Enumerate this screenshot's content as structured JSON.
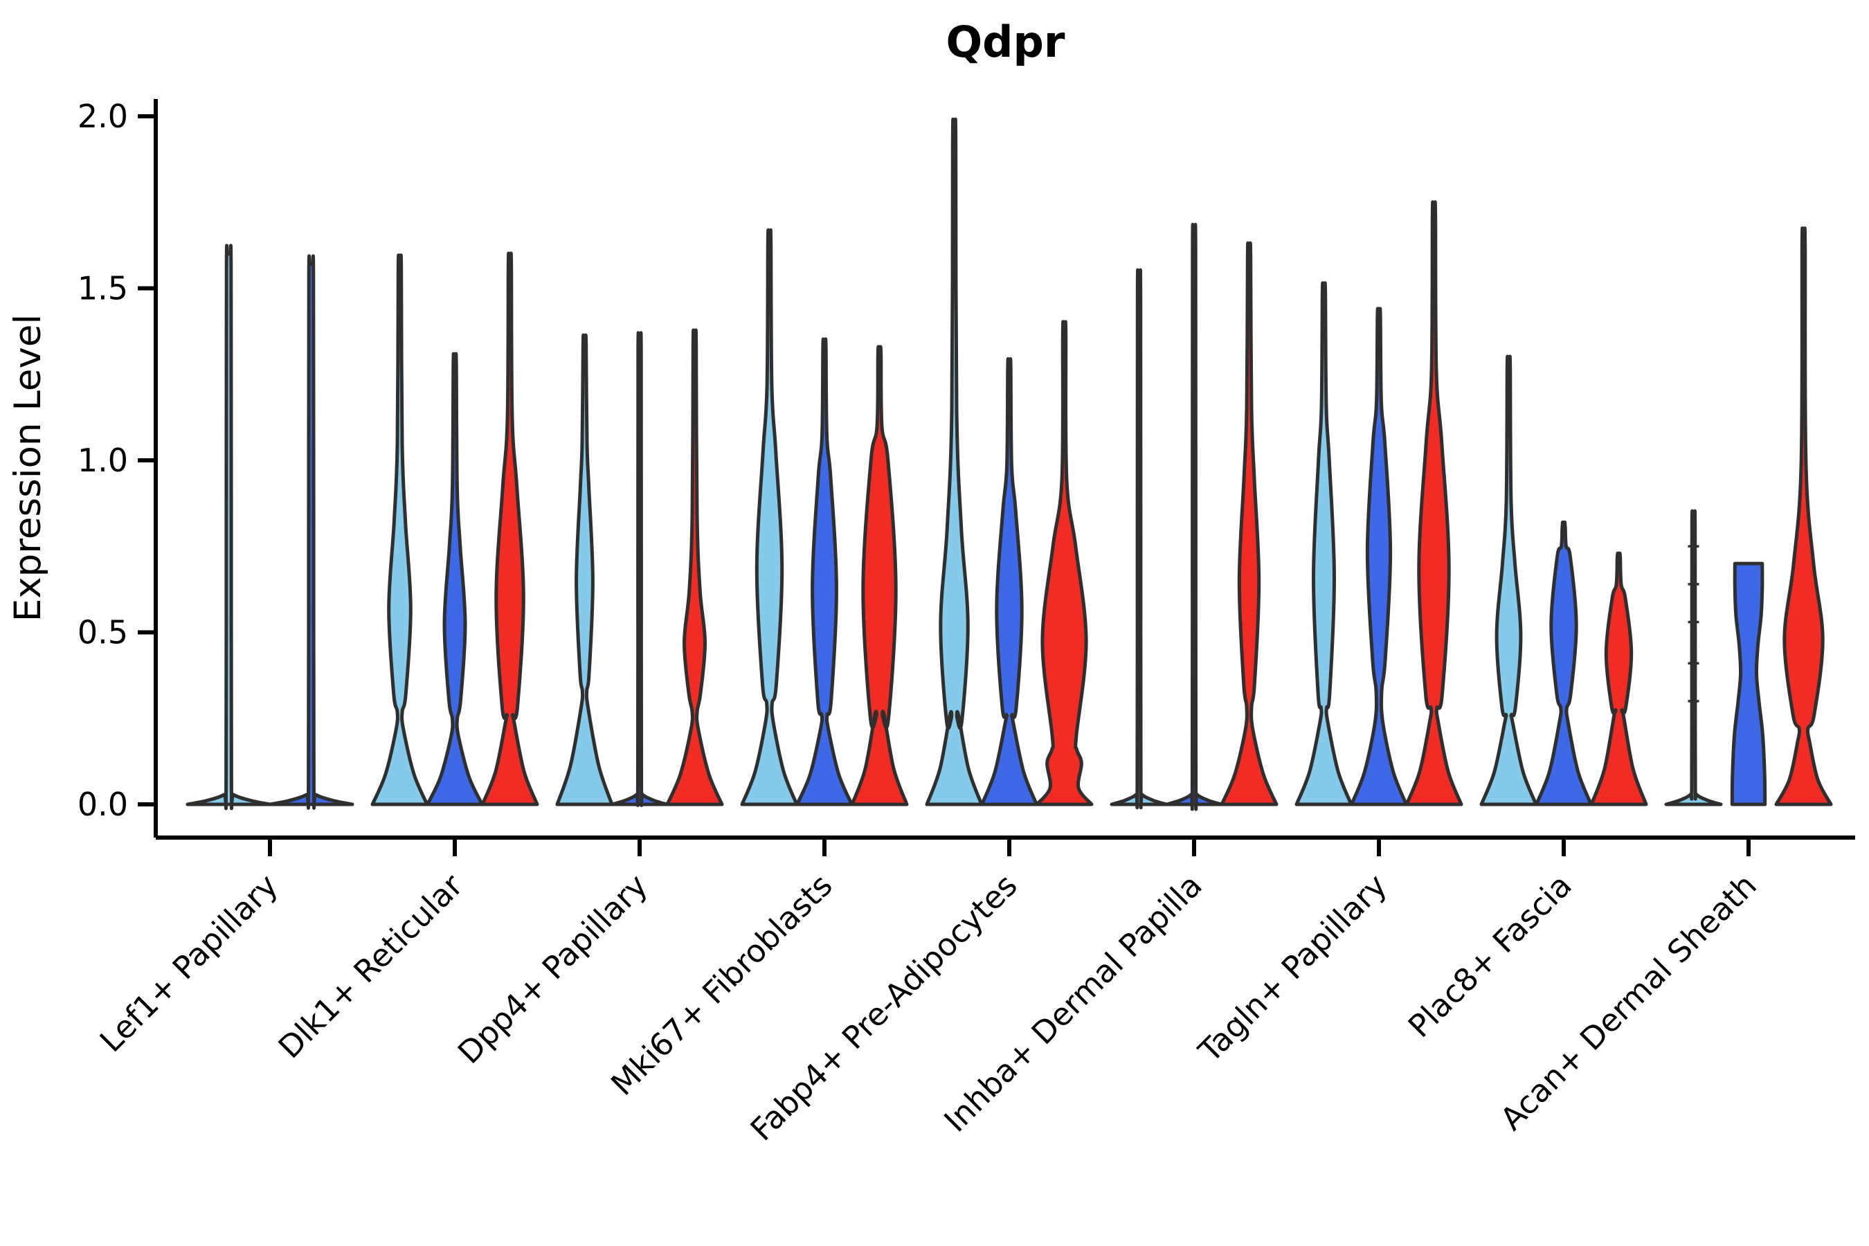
{
  "title": "Qdpr",
  "y_axis": {
    "label": "Expression Level",
    "tick_labels": [
      "0.0",
      "0.5",
      "1.0",
      "1.5",
      "2.0"
    ],
    "tick_values": [
      0.0,
      0.5,
      1.0,
      1.5,
      2.0
    ]
  },
  "x_axis": {
    "categories": [
      "Lef1+ Papillary",
      "Dlk1+ Reticular",
      "Dpp4+ Papillary",
      "Mki67+ Fibroblasts",
      "Fabp4+ Pre-Adipocytes",
      "Inhba+ Dermal Papilla",
      "Tagln+ Papillary",
      "Plac8+ Fascia",
      "Acan+ Dermal Sheath"
    ]
  },
  "palette": {
    "light_blue": "#85CAEA",
    "dark_blue": "#3D68E8",
    "red": "#F32B25",
    "outline": "#2F2F2F",
    "axis": "#000000"
  },
  "chart_data": {
    "type": "violin",
    "title": "Qdpr",
    "xlabel": "",
    "ylabel": "Expression Level",
    "ylim": [
      0,
      2.05
    ],
    "grid": false,
    "legend": "none",
    "categories": [
      "Lef1+ Papillary",
      "Dlk1+ Reticular",
      "Dpp4+ Papillary",
      "Mki67+ Fibroblasts",
      "Fabp4+ Pre-Adipocytes",
      "Inhba+ Dermal Papilla",
      "Tagln+ Papillary",
      "Plac8+ Fascia",
      "Acan+ Dermal Sheath"
    ],
    "series_order": [
      "light_blue",
      "dark_blue",
      "red"
    ],
    "note": "Split violin plot of Qdpr expression per fibroblast cluster; max = top of expression spike; bulge = value interval of visible density bulge; bulge_w, foot and neck widths are fractions of the violin slot half-width.",
    "groups": [
      {
        "category": "Lef1+ Papillary",
        "violins": [
          {
            "series": "light_blue",
            "shape": "flat_spike",
            "max": 1.6
          },
          {
            "series": "dark_blue",
            "shape": "flat_spike",
            "max": 1.57
          }
        ]
      },
      {
        "category": "Dlk1+ Reticular",
        "violins": [
          {
            "series": "light_blue",
            "shape": "violin",
            "max": 1.58,
            "foot_h": 0.22,
            "neck_w": 0.09,
            "bulge": [
              0.32,
              0.82
            ],
            "bulge_w": 0.4
          },
          {
            "series": "dark_blue",
            "shape": "violin",
            "max": 1.3,
            "foot_h": 0.2,
            "neck_w": 0.09,
            "bulge": [
              0.3,
              0.75
            ],
            "bulge_w": 0.38
          },
          {
            "series": "red",
            "shape": "violin",
            "max": 1.59,
            "foot_h": 0.24,
            "neck_w": 0.11,
            "bulge": [
              0.28,
              0.92
            ],
            "bulge_w": 0.5
          }
        ]
      },
      {
        "category": "Dpp4+ Papillary",
        "violins": [
          {
            "series": "light_blue",
            "shape": "violin",
            "max": 1.36,
            "foot_h": 0.28,
            "neck_w": 0.08,
            "bulge": [
              0.38,
              0.92
            ],
            "bulge_w": 0.3
          },
          {
            "series": "dark_blue",
            "shape": "flat_spike",
            "max": 1.35
          },
          {
            "series": "red",
            "shape": "violin",
            "max": 1.36,
            "foot_h": 0.22,
            "neck_w": 0.09,
            "bulge": [
              0.32,
              0.62
            ],
            "bulge_w": 0.38
          }
        ]
      },
      {
        "category": "Mki67+ Fibroblasts",
        "violins": [
          {
            "series": "light_blue",
            "shape": "violin",
            "max": 1.66,
            "foot_h": 0.24,
            "neck_w": 0.1,
            "bulge": [
              0.35,
              1.02
            ],
            "bulge_w": 0.46
          },
          {
            "series": "dark_blue",
            "shape": "violin",
            "max": 1.35,
            "foot_h": 0.22,
            "neck_w": 0.1,
            "bulge": [
              0.3,
              0.95
            ],
            "bulge_w": 0.44
          },
          {
            "series": "red",
            "shape": "violin",
            "max": 1.33,
            "foot_h": 0.26,
            "neck_w": 0.12,
            "bulge": [
              0.25,
              1.0
            ],
            "bulge_w": 0.6
          }
        ]
      },
      {
        "category": "Fabp4+ Pre-Adipocytes",
        "violins": [
          {
            "series": "light_blue",
            "shape": "violin",
            "max": 1.96,
            "foot_h": 0.26,
            "neck_w": 0.11,
            "bulge": [
              0.24,
              0.8
            ],
            "bulge_w": 0.5
          },
          {
            "series": "dark_blue",
            "shape": "violin",
            "max": 1.29,
            "foot_h": 0.24,
            "neck_w": 0.1,
            "bulge": [
              0.28,
              0.85
            ],
            "bulge_w": 0.46
          },
          {
            "series": "red",
            "shape": "violin",
            "max": 1.39,
            "foot_h": 0.12,
            "neck_w": 0.45,
            "bulge": [
              0.2,
              0.75
            ],
            "bulge_w": 0.8
          }
        ]
      },
      {
        "category": "Inhba+ Dermal Papilla",
        "violins": [
          {
            "series": "light_blue",
            "shape": "flat_spike",
            "max": 1.53
          },
          {
            "series": "dark_blue",
            "shape": "flat_spike",
            "max": 1.66
          },
          {
            "series": "red",
            "shape": "violin",
            "max": 1.62,
            "foot_h": 0.22,
            "neck_w": 0.09,
            "bulge": [
              0.35,
              0.95
            ],
            "bulge_w": 0.36
          }
        ]
      },
      {
        "category": "Tagln+ Papillary",
        "violins": [
          {
            "series": "light_blue",
            "shape": "violin",
            "max": 1.51,
            "foot_h": 0.24,
            "neck_w": 0.1,
            "bulge": [
              0.32,
              1.0
            ],
            "bulge_w": 0.38
          },
          {
            "series": "dark_blue",
            "shape": "violin",
            "max": 1.44,
            "foot_h": 0.24,
            "neck_w": 0.1,
            "bulge": [
              0.42,
              1.05
            ],
            "bulge_w": 0.42
          },
          {
            "series": "red",
            "shape": "violin",
            "max": 1.74,
            "foot_h": 0.24,
            "neck_w": 0.11,
            "bulge": [
              0.32,
              1.05
            ],
            "bulge_w": 0.55
          }
        ]
      },
      {
        "category": "Plac8+ Fascia",
        "violins": [
          {
            "series": "light_blue",
            "shape": "violin",
            "max": 1.29,
            "foot_h": 0.24,
            "neck_w": 0.1,
            "bulge": [
              0.28,
              0.7
            ],
            "bulge_w": 0.44
          },
          {
            "series": "dark_blue",
            "shape": "violin",
            "max": 0.82,
            "foot_h": 0.24,
            "neck_w": 0.11,
            "bulge": [
              0.32,
              0.72
            ],
            "bulge_w": 0.46
          },
          {
            "series": "red",
            "shape": "violin",
            "max": 0.73,
            "foot_h": 0.26,
            "neck_w": 0.12,
            "bulge": [
              0.28,
              0.6
            ],
            "bulge_w": 0.46
          }
        ]
      },
      {
        "category": "Acan+ Dermal Sheath",
        "violins": [
          {
            "series": "light_blue",
            "shape": "flat_spike",
            "max": 0.84,
            "ticks": [
              0.3,
              0.41,
              0.53,
              0.64,
              0.75
            ]
          },
          {
            "series": "dark_blue",
            "shape": "custom",
            "max": 0.7,
            "flat_top": true,
            "profile": [
              [
                0,
                0.6
              ],
              [
                0.08,
                0.59
              ],
              [
                0.2,
                0.52
              ],
              [
                0.3,
                0.38
              ],
              [
                0.38,
                0.29
              ],
              [
                0.46,
                0.34
              ],
              [
                0.55,
                0.46
              ],
              [
                0.63,
                0.5
              ],
              [
                0.7,
                0.5
              ]
            ]
          },
          {
            "series": "red",
            "shape": "violin",
            "max": 1.65,
            "foot_h": 0.18,
            "neck_w": 0.16,
            "bulge": [
              0.26,
              0.7
            ],
            "bulge_w": 0.7
          }
        ]
      }
    ]
  }
}
